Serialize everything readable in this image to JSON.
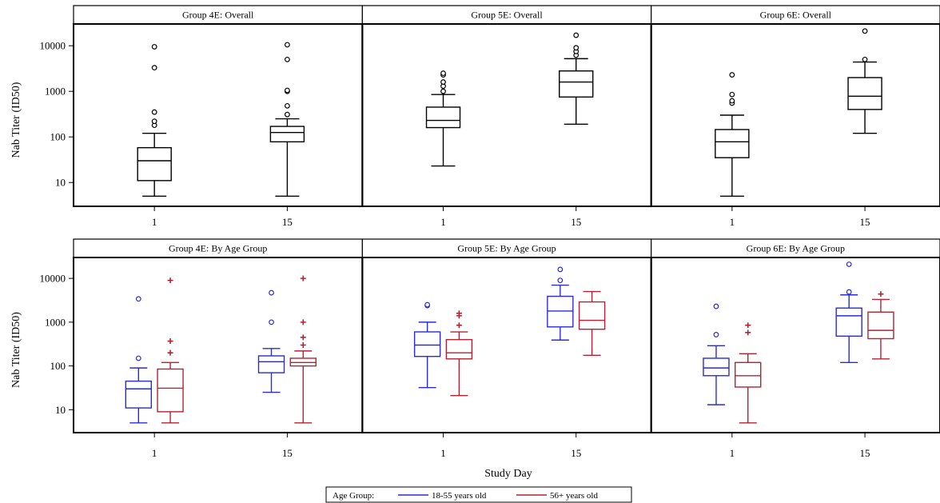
{
  "chart_data": {
    "type": "box",
    "y_scale": "log",
    "y_ticks": [
      10,
      100,
      1000,
      10000
    ],
    "y_range": [
      3,
      30000
    ],
    "x_categories": [
      "1",
      "15"
    ],
    "ylabel": "Nab Titer (ID50)",
    "xlabel": "Study Day",
    "legend": {
      "title": "Age Group:",
      "placement": "bottom-center",
      "entries": [
        {
          "name": "18-55 years old",
          "color": "#2b2bd6"
        },
        {
          "name": "56+ years old",
          "color": "#b22234"
        }
      ]
    },
    "rows": [
      {
        "panels": [
          {
            "title": "Group 4E: Overall",
            "boxes": [
              {
                "day": "1",
                "series": "overall",
                "min": 5,
                "q1": 11,
                "median": 30,
                "q3": 58,
                "max": 120,
                "outliers": [
                  {
                    "v": 180,
                    "m": "o"
                  },
                  {
                    "v": 220,
                    "m": "o"
                  },
                  {
                    "v": 350,
                    "m": "o"
                  },
                  {
                    "v": 3300,
                    "m": "o"
                  },
                  {
                    "v": 9500,
                    "m": "o"
                  }
                ]
              },
              {
                "day": "15",
                "series": "overall",
                "min": 5,
                "q1": 78,
                "median": 125,
                "q3": 170,
                "max": 250,
                "outliers": [
                  {
                    "v": 310,
                    "m": "o"
                  },
                  {
                    "v": 480,
                    "m": "o"
                  },
                  {
                    "v": 1000,
                    "m": "o"
                  },
                  {
                    "v": 1050,
                    "m": "o"
                  },
                  {
                    "v": 5000,
                    "m": "o"
                  },
                  {
                    "v": 10500,
                    "m": "o"
                  }
                ]
              }
            ]
          },
          {
            "title": "Group 5E: Overall",
            "boxes": [
              {
                "day": "1",
                "series": "overall",
                "min": 23,
                "q1": 160,
                "median": 230,
                "q3": 450,
                "max": 850,
                "outliers": [
                  {
                    "v": 1000,
                    "m": "o"
                  },
                  {
                    "v": 1300,
                    "m": "o"
                  },
                  {
                    "v": 1600,
                    "m": "o"
                  },
                  {
                    "v": 2300,
                    "m": "o"
                  },
                  {
                    "v": 2500,
                    "m": "o"
                  }
                ]
              },
              {
                "day": "15",
                "series": "overall",
                "min": 190,
                "q1": 750,
                "median": 1600,
                "q3": 2800,
                "max": 5200,
                "outliers": [
                  {
                    "v": 6200,
                    "m": "o"
                  },
                  {
                    "v": 7500,
                    "m": "o"
                  },
                  {
                    "v": 9000,
                    "m": "o"
                  },
                  {
                    "v": 17000,
                    "m": "o"
                  }
                ]
              }
            ]
          },
          {
            "title": "Group 6E: Overall",
            "boxes": [
              {
                "day": "1",
                "series": "overall",
                "min": 5,
                "q1": 35,
                "median": 78,
                "q3": 145,
                "max": 300,
                "outliers": [
                  {
                    "v": 550,
                    "m": "o"
                  },
                  {
                    "v": 620,
                    "m": "o"
                  },
                  {
                    "v": 850,
                    "m": "o"
                  },
                  {
                    "v": 2300,
                    "m": "o"
                  }
                ]
              },
              {
                "day": "15",
                "series": "overall",
                "min": 120,
                "q1": 400,
                "median": 780,
                "q3": 2000,
                "max": 4400,
                "outliers": [
                  {
                    "v": 5000,
                    "m": "o"
                  },
                  {
                    "v": 21000,
                    "m": "o"
                  }
                ]
              }
            ]
          }
        ]
      },
      {
        "panels": [
          {
            "title": "Group 4E: By Age Group",
            "boxes": [
              {
                "day": "1",
                "series": "18-55",
                "min": 5,
                "q1": 11,
                "median": 30,
                "q3": 45,
                "max": 90,
                "outliers": [
                  {
                    "v": 150,
                    "m": "o"
                  },
                  {
                    "v": 3400,
                    "m": "o"
                  }
                ]
              },
              {
                "day": "1",
                "series": "56+",
                "min": 5,
                "q1": 9,
                "median": 31,
                "q3": 85,
                "max": 120,
                "outliers": [
                  {
                    "v": 200,
                    "m": "+"
                  },
                  {
                    "v": 370,
                    "m": "+"
                  },
                  {
                    "v": 9000,
                    "m": "+"
                  }
                ]
              },
              {
                "day": "15",
                "series": "18-55",
                "min": 25,
                "q1": 70,
                "median": 125,
                "q3": 170,
                "max": 250,
                "outliers": [
                  {
                    "v": 1000,
                    "m": "o"
                  },
                  {
                    "v": 4700,
                    "m": "o"
                  }
                ]
              },
              {
                "day": "15",
                "series": "56+",
                "min": 5,
                "q1": 100,
                "median": 120,
                "q3": 150,
                "max": 220,
                "outliers": [
                  {
                    "v": 300,
                    "m": "+"
                  },
                  {
                    "v": 450,
                    "m": "+"
                  },
                  {
                    "v": 1000,
                    "m": "+"
                  },
                  {
                    "v": 10000,
                    "m": "+"
                  }
                ]
              }
            ]
          },
          {
            "title": "Group 5E: By Age Group",
            "boxes": [
              {
                "day": "1",
                "series": "18-55",
                "min": 32,
                "q1": 165,
                "median": 300,
                "q3": 600,
                "max": 1000,
                "outliers": [
                  {
                    "v": 2400,
                    "m": "o"
                  },
                  {
                    "v": 2500,
                    "m": "o"
                  }
                ]
              },
              {
                "day": "1",
                "series": "56+",
                "min": 21,
                "q1": 145,
                "median": 200,
                "q3": 400,
                "max": 600,
                "outliers": [
                  {
                    "v": 850,
                    "m": "+"
                  },
                  {
                    "v": 1400,
                    "m": "+"
                  },
                  {
                    "v": 1600,
                    "m": "+"
                  }
                ]
              },
              {
                "day": "15",
                "series": "18-55",
                "min": 390,
                "q1": 780,
                "median": 1800,
                "q3": 3900,
                "max": 7000,
                "outliers": [
                  {
                    "v": 9000,
                    "m": "o"
                  },
                  {
                    "v": 16000,
                    "m": "o"
                  }
                ]
              },
              {
                "day": "15",
                "series": "56+",
                "min": 175,
                "q1": 690,
                "median": 1100,
                "q3": 2900,
                "max": 5000,
                "outliers": []
              }
            ]
          },
          {
            "title": "Group 6E: By Age Group",
            "boxes": [
              {
                "day": "1",
                "series": "18-55",
                "min": 13,
                "q1": 60,
                "median": 90,
                "q3": 150,
                "max": 290,
                "outliers": [
                  {
                    "v": 520,
                    "m": "o"
                  },
                  {
                    "v": 2300,
                    "m": "o"
                  }
                ]
              },
              {
                "day": "1",
                "series": "56+",
                "min": 5,
                "q1": 33,
                "median": 60,
                "q3": 120,
                "max": 190,
                "outliers": [
                  {
                    "v": 580,
                    "m": "+"
                  },
                  {
                    "v": 850,
                    "m": "+"
                  }
                ]
              },
              {
                "day": "15",
                "series": "18-55",
                "min": 120,
                "q1": 480,
                "median": 1400,
                "q3": 2100,
                "max": 4200,
                "outliers": [
                  {
                    "v": 4900,
                    "m": "o"
                  },
                  {
                    "v": 21000,
                    "m": "o"
                  }
                ]
              },
              {
                "day": "15",
                "series": "56+",
                "min": 145,
                "q1": 420,
                "median": 650,
                "q3": 1700,
                "max": 3300,
                "outliers": [
                  {
                    "v": 4400,
                    "m": "+"
                  }
                ]
              }
            ]
          }
        ]
      }
    ]
  }
}
